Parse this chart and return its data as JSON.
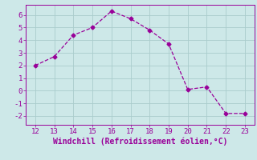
{
  "x": [
    12,
    13,
    14,
    15,
    16,
    17,
    18,
    19,
    20,
    21,
    22,
    23
  ],
  "y": [
    2.0,
    2.7,
    4.4,
    5.0,
    6.3,
    5.7,
    4.8,
    3.7,
    0.1,
    0.3,
    -1.8,
    -1.8
  ],
  "line_color": "#990099",
  "marker": "D",
  "marker_size": 2.5,
  "xlabel": "Windchill (Refroidissement éolien,°C)",
  "xlim": [
    11.5,
    23.5
  ],
  "ylim": [
    -2.7,
    6.8
  ],
  "xticks": [
    12,
    13,
    14,
    15,
    16,
    17,
    18,
    19,
    20,
    21,
    22,
    23
  ],
  "yticks": [
    -2,
    -1,
    0,
    1,
    2,
    3,
    4,
    5,
    6
  ],
  "background_color": "#cde8e8",
  "grid_color": "#aacccc",
  "tick_color": "#990099",
  "label_color": "#990099",
  "tick_fontsize": 6.5,
  "xlabel_fontsize": 7.0
}
